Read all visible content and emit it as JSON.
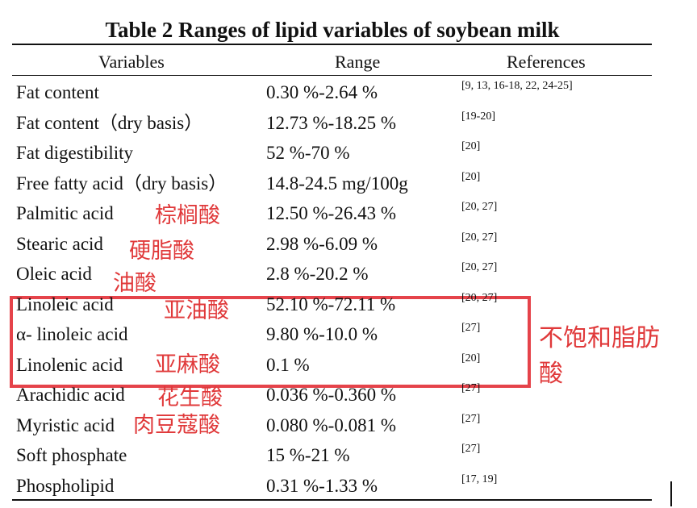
{
  "title": "Table 2    Ranges of lipid variables of soybean milk",
  "header": [
    "Variables",
    "Range",
    "References"
  ],
  "rows": [
    [
      "Fat content",
      "0.30 %-2.64 %",
      "[9, 13, 16-18, 22, 24-25]"
    ],
    [
      "Fat content（dry basis）",
      "12.73 %-18.25 %",
      "[19-20]"
    ],
    [
      "Fat digestibility",
      "52 %-70 %",
      "[20]"
    ],
    [
      "Free fatty acid（dry basis）",
      "14.8-24.5 mg/100g",
      "[20]"
    ],
    [
      "Palmitic acid",
      "12.50 %-26.43 %",
      "[20, 27]"
    ],
    [
      "Stearic acid",
      "2.98 %-6.09 %",
      "[20, 27]"
    ],
    [
      "Oleic acid",
      "2.8 %-20.2 %",
      "[20, 27]"
    ],
    [
      "Linoleic acid",
      "52.10 %-72.11 %",
      "[20, 27]"
    ],
    [
      "α- linoleic acid",
      "9.80 %-10.0 %",
      "[27]"
    ],
    [
      "Linolenic acid",
      "0.1 %",
      "[20]"
    ],
    [
      "Arachidic acid",
      "0.036 %-0.360 %",
      "[27]"
    ],
    [
      "Myristic acid",
      "0.080 %-0.081 %",
      "[27]"
    ],
    [
      "Soft phosphate",
      "15 %-21 %",
      "[27]"
    ],
    [
      "Phospholipid",
      "0.31 %-1.33 %",
      "[17, 19]"
    ]
  ],
  "annotations": [
    "棕榈酸",
    "硬脂酸",
    "油酸",
    "亚油酸",
    "亚麻酸",
    "花生酸",
    "肉豆蔻酸"
  ],
  "side_note": "不饱和脂肪酸"
}
